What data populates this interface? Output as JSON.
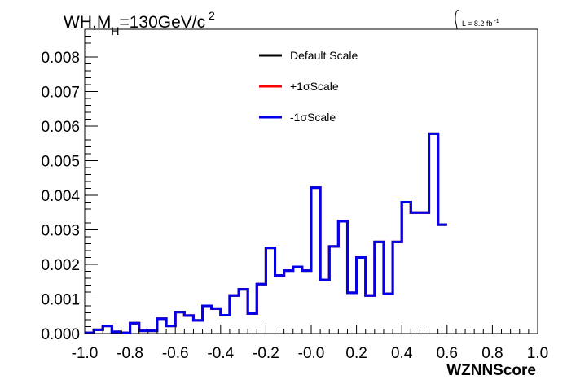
{
  "chart_data": {
    "type": "line",
    "title": "WH,M",
    "title_subscript": "H",
    "title_suffix": "=130GeV/c",
    "title_superscript": "2",
    "annotation_lumi": "L = 8.2 fb",
    "annotation_lumi_exp": "-1",
    "xlabel": "WZNNScore",
    "ylabel": "",
    "xlim": [
      -1.0,
      1.0
    ],
    "ylim": [
      0.0,
      0.0088
    ],
    "x_ticks": [
      "-1.0",
      "-0.8",
      "-0.6",
      "-0.4",
      "-0.2",
      "-0.0",
      "0.2",
      "0.4",
      "0.6",
      "0.8",
      "1.0"
    ],
    "x_tick_values": [
      -1.0,
      -0.8,
      -0.6,
      -0.4,
      -0.2,
      0.0,
      0.2,
      0.4,
      0.6,
      0.8,
      1.0
    ],
    "y_ticks": [
      "0.000",
      "0.001",
      "0.002",
      "0.003",
      "0.004",
      "0.005",
      "0.006",
      "0.007",
      "0.008"
    ],
    "y_tick_values": [
      0.0,
      0.001,
      0.002,
      0.003,
      0.004,
      0.005,
      0.006,
      0.007,
      0.008
    ],
    "legend_position": "top-center",
    "grid": false,
    "bin_edges_start": -1.0,
    "bin_width": 0.04,
    "series": [
      {
        "name": "Default Scale",
        "color": "#000000",
        "values": [
          2e-05,
          0.00011,
          0.00022,
          5e-05,
          2e-05,
          0.0003,
          8e-05,
          8e-05,
          0.00043,
          0.00022,
          0.00062,
          0.00052,
          0.00038,
          0.0008,
          0.00072,
          0.00053,
          0.0011,
          0.00128,
          0.00058,
          0.00143,
          0.00248,
          0.00168,
          0.00182,
          0.00193,
          0.00182,
          0.00422,
          0.00155,
          0.00252,
          0.00325,
          0.00118,
          0.0022,
          0.0011,
          0.00265,
          0.00115,
          0.00265,
          0.0038,
          0.0035,
          0.0035,
          0.00578,
          0.00315
        ]
      },
      {
        "name": "+1σScale",
        "color": "#ff0000",
        "values": [
          2e-05,
          0.00011,
          0.00022,
          5e-05,
          2e-05,
          0.0003,
          8e-05,
          8e-05,
          0.00043,
          0.00022,
          0.00062,
          0.00052,
          0.00038,
          0.0008,
          0.00072,
          0.00053,
          0.0011,
          0.00128,
          0.00058,
          0.00143,
          0.00248,
          0.00168,
          0.00182,
          0.00193,
          0.00182,
          0.00422,
          0.00155,
          0.00252,
          0.00325,
          0.00118,
          0.0022,
          0.0011,
          0.00265,
          0.00115,
          0.00265,
          0.0038,
          0.0035,
          0.0035,
          0.00578,
          0.00315
        ]
      },
      {
        "name": "-1σScale",
        "color": "#0000ee",
        "values": [
          2e-05,
          0.00011,
          0.00022,
          5e-05,
          2e-05,
          0.0003,
          8e-05,
          8e-05,
          0.00043,
          0.00022,
          0.00062,
          0.00052,
          0.00038,
          0.0008,
          0.00072,
          0.00053,
          0.0011,
          0.00128,
          0.00058,
          0.00143,
          0.00248,
          0.00168,
          0.00182,
          0.00193,
          0.00182,
          0.00422,
          0.00155,
          0.00252,
          0.00325,
          0.00118,
          0.0022,
          0.0011,
          0.00265,
          0.00115,
          0.00265,
          0.0038,
          0.0035,
          0.0035,
          0.00578,
          0.00315
        ]
      }
    ]
  }
}
